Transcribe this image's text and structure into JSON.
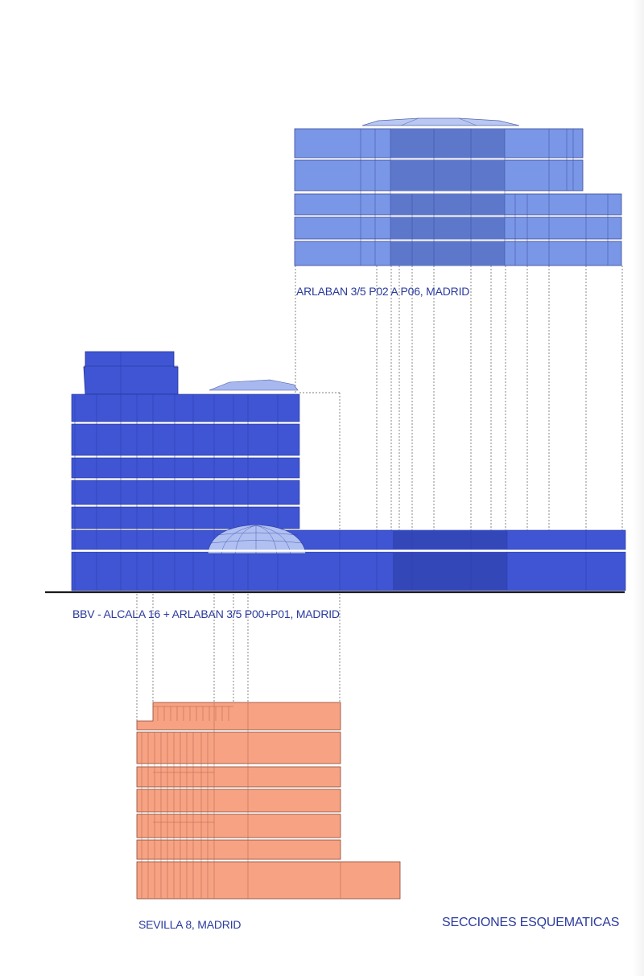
{
  "labels": {
    "top_building": "ARLABAN 3/5 P02 A P06, MADRID",
    "middle_building": "BBV - ALCALA 16 + ARLABAN 3/5 P00+P01, MADRID",
    "bottom_building": "SEVILLA 8, MADRID",
    "sheet_title": "SECCIONES ESQUEMATICAS"
  },
  "colors": {
    "top_building": "#7a96e6",
    "top_building_core": "#5a74c8",
    "middle_building": "#3f55d4",
    "middle_building_core": "#3447b8",
    "bottom_building": "#f7a283",
    "label_text": "#2a3a9c",
    "ground_line": "#1a1a1a"
  }
}
